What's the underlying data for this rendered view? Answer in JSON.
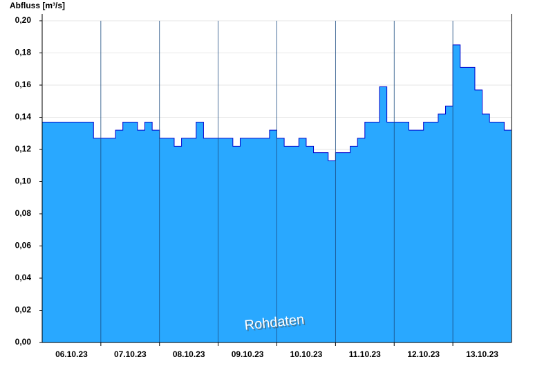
{
  "chart_data": {
    "type": "area",
    "title": "Abfluss [m³/s]",
    "annotation": "Rohdaten",
    "categories": [
      null,
      null,
      null,
      null,
      "06.10.23",
      null,
      null,
      null,
      null,
      null,
      null,
      null,
      "07.10.23",
      null,
      null,
      null,
      null,
      null,
      null,
      null,
      "08.10.23",
      null,
      null,
      null,
      null,
      null,
      null,
      null,
      "09.10.23",
      null,
      null,
      null,
      null,
      null,
      null,
      null,
      "10.10.23",
      null,
      null,
      null,
      null,
      null,
      null,
      null,
      "11.10.23",
      null,
      null,
      null,
      null,
      null,
      null,
      null,
      "12.10.23",
      null,
      null,
      null,
      null,
      null,
      null,
      null,
      "13.10.23",
      null,
      null,
      null
    ],
    "values": [
      0.137,
      0.137,
      0.137,
      0.137,
      0.137,
      0.137,
      0.137,
      0.127,
      0.127,
      0.127,
      0.132,
      0.137,
      0.137,
      0.132,
      0.137,
      0.132,
      0.127,
      0.127,
      0.122,
      0.127,
      0.127,
      0.137,
      0.127,
      0.127,
      0.127,
      0.127,
      0.122,
      0.127,
      0.127,
      0.127,
      0.127,
      0.132,
      0.127,
      0.122,
      0.122,
      0.127,
      0.122,
      0.118,
      0.118,
      0.113,
      0.118,
      0.118,
      0.122,
      0.127,
      0.137,
      0.137,
      0.159,
      0.137,
      0.137,
      0.137,
      0.132,
      0.132,
      0.137,
      0.137,
      0.142,
      0.147,
      0.185,
      0.171,
      0.171,
      0.157,
      0.142,
      0.137,
      0.137,
      0.132
    ],
    "color": "#29a8ff",
    "line_color": "#0000cc",
    "ylim": [
      0,
      0.2
    ],
    "yticks": [
      {
        "value": 0,
        "label": "0,00"
      },
      {
        "value": 0.02,
        "label": "0,02"
      },
      {
        "value": 0.04,
        "label": "0,04"
      },
      {
        "value": 0.06,
        "label": "0,06"
      },
      {
        "value": 0.08,
        "label": "0,08"
      },
      {
        "value": 0.1,
        "label": "0,10"
      },
      {
        "value": 0.12,
        "label": "0,12"
      },
      {
        "value": 0.14,
        "label": "0,14"
      },
      {
        "value": 0.16,
        "label": "0,16"
      },
      {
        "value": 0.18,
        "label": "0,18"
      },
      {
        "value": 0.2,
        "label": "0,20"
      }
    ],
    "grid": true
  }
}
